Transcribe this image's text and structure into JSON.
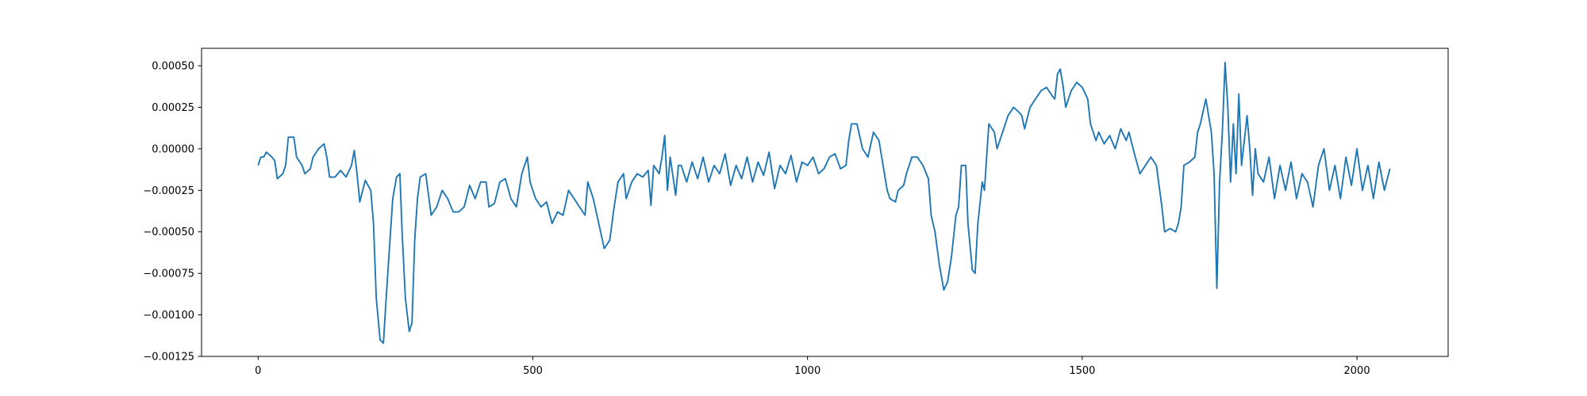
{
  "chart_data": {
    "type": "line",
    "color": "#1f77b4",
    "xlim": [
      -103,
      2166
    ],
    "ylim": [
      -0.00125,
      0.000605
    ],
    "xticks": [
      0,
      500,
      1000,
      1500,
      2000
    ],
    "yticks": [
      {
        "value": -0.00125,
        "label": "−0.00125"
      },
      {
        "value": -0.001,
        "label": "−0.00100"
      },
      {
        "value": -0.00075,
        "label": "−0.00075"
      },
      {
        "value": -0.0005,
        "label": "−0.00050"
      },
      {
        "value": -0.00025,
        "label": "−0.00025"
      },
      {
        "value": 0,
        "label": "0.00000"
      },
      {
        "value": 0.00025,
        "label": "0.00025"
      },
      {
        "value": 0.0005,
        "label": "0.00050"
      }
    ],
    "x": [
      0,
      5,
      10,
      15,
      25,
      30,
      35,
      45,
      50,
      55,
      65,
      70,
      80,
      85,
      95,
      100,
      110,
      120,
      125,
      130,
      140,
      150,
      160,
      170,
      175,
      180,
      185,
      195,
      205,
      210,
      215,
      222,
      228,
      233,
      240,
      245,
      252,
      258,
      262,
      268,
      275,
      280,
      285,
      290,
      295,
      305,
      315,
      325,
      335,
      345,
      355,
      365,
      375,
      385,
      395,
      405,
      415,
      420,
      430,
      440,
      450,
      460,
      470,
      475,
      480,
      490,
      495,
      505,
      515,
      525,
      535,
      545,
      555,
      565,
      575,
      585,
      595,
      600,
      610,
      620,
      630,
      640,
      648,
      655,
      665,
      670,
      680,
      690,
      700,
      710,
      715,
      720,
      730,
      735,
      740,
      745,
      750,
      760,
      765,
      770,
      780,
      790,
      800,
      810,
      820,
      830,
      840,
      850,
      860,
      870,
      880,
      890,
      900,
      910,
      920,
      930,
      940,
      950,
      960,
      970,
      980,
      990,
      1000,
      1010,
      1020,
      1030,
      1040,
      1050,
      1060,
      1070,
      1075,
      1080,
      1090,
      1100,
      1110,
      1120,
      1130,
      1140,
      1145,
      1150,
      1160,
      1165,
      1175,
      1180,
      1190,
      1200,
      1210,
      1220,
      1225,
      1232,
      1240,
      1248,
      1255,
      1262,
      1270,
      1275,
      1280,
      1288,
      1292,
      1300,
      1305,
      1310,
      1318,
      1322,
      1330,
      1340,
      1345,
      1355,
      1365,
      1375,
      1385,
      1390,
      1395,
      1405,
      1415,
      1425,
      1435,
      1445,
      1450,
      1455,
      1460,
      1465,
      1470,
      1480,
      1490,
      1500,
      1510,
      1515,
      1525,
      1530,
      1540,
      1550,
      1560,
      1570,
      1580,
      1585,
      1595,
      1605,
      1615,
      1625,
      1635,
      1645,
      1650,
      1660,
      1670,
      1675,
      1680,
      1685,
      1695,
      1705,
      1710,
      1715,
      1725,
      1735,
      1740,
      1745,
      1750,
      1755,
      1760,
      1765,
      1770,
      1775,
      1780,
      1785,
      1790,
      1795,
      1800,
      1805,
      1810,
      1815,
      1820,
      1830,
      1840,
      1850,
      1860,
      1870,
      1880,
      1890,
      1900,
      1910,
      1920,
      1930,
      1940,
      1950,
      1960,
      1970,
      1980,
      1990,
      2000,
      2010,
      2020,
      2030,
      2040,
      2050,
      2060
    ],
    "values": [
      -0.0001,
      -5e-05,
      -5e-05,
      -2e-05,
      -5e-05,
      -7e-05,
      -0.00018,
      -0.00015,
      -0.0001,
      7e-05,
      7e-05,
      -5e-05,
      -0.0001,
      -0.00015,
      -0.00012,
      -5e-05,
      0,
      3e-05,
      -5e-05,
      -0.00017,
      -0.00017,
      -0.00013,
      -0.00017,
      -0.0001,
      -1e-05,
      -0.00015,
      -0.00032,
      -0.00019,
      -0.00025,
      -0.00045,
      -0.0009,
      -0.00115,
      -0.00117,
      -0.0009,
      -0.00055,
      -0.0003,
      -0.00017,
      -0.00015,
      -0.0005,
      -0.0009,
      -0.0011,
      -0.00105,
      -0.00055,
      -0.0003,
      -0.00017,
      -0.00015,
      -0.0004,
      -0.00035,
      -0.00025,
      -0.0003,
      -0.00038,
      -0.00038,
      -0.00035,
      -0.00022,
      -0.0003,
      -0.0002,
      -0.0002,
      -0.00035,
      -0.00033,
      -0.0002,
      -0.00018,
      -0.0003,
      -0.00035,
      -0.00025,
      -0.00015,
      -5e-05,
      -0.0002,
      -0.0003,
      -0.00035,
      -0.00032,
      -0.00045,
      -0.00038,
      -0.0004,
      -0.00025,
      -0.0003,
      -0.00035,
      -0.0004,
      -0.0002,
      -0.0003,
      -0.00045,
      -0.0006,
      -0.00055,
      -0.00035,
      -0.0002,
      -0.00015,
      -0.0003,
      -0.0002,
      -0.00015,
      -0.00017,
      -0.00013,
      -0.00034,
      -0.0001,
      -0.00015,
      -5e-05,
      8e-05,
      -0.00025,
      -5e-05,
      -0.00028,
      -0.0001,
      -0.0001,
      -0.0002,
      -8e-05,
      -0.00018,
      -5e-05,
      -0.0002,
      -0.0001,
      -0.00015,
      -3e-05,
      -0.00022,
      -0.0001,
      -0.00018,
      -5e-05,
      -0.0002,
      -8e-05,
      -0.00016,
      -2e-05,
      -0.00024,
      -0.0001,
      -0.00015,
      -4e-05,
      -0.0002,
      -8e-05,
      -0.0001,
      -5e-05,
      -0.00015,
      -0.00012,
      -5e-05,
      -3e-05,
      -0.00012,
      -0.0001,
      5e-05,
      0.00015,
      0.00015,
      0,
      -5e-05,
      0.0001,
      5e-05,
      -0.00015,
      -0.00025,
      -0.0003,
      -0.00032,
      -0.00025,
      -0.00022,
      -0.00015,
      -5e-05,
      -5e-05,
      -0.0001,
      -0.00018,
      -0.0004,
      -0.0005,
      -0.0007,
      -0.00085,
      -0.0008,
      -0.00065,
      -0.0004,
      -0.00035,
      -0.0001,
      -0.0001,
      -0.00045,
      -0.00073,
      -0.00075,
      -0.00045,
      -0.0002,
      -0.00025,
      0.00015,
      0.0001,
      0,
      0.0001,
      0.0002,
      0.00025,
      0.00022,
      0.0002,
      0.00012,
      0.00025,
      0.0003,
      0.00035,
      0.00037,
      0.00032,
      0.0003,
      0.00045,
      0.00048,
      0.00038,
      0.00025,
      0.00035,
      0.0004,
      0.00037,
      0.0003,
      0.00015,
      5e-05,
      0.0001,
      3e-05,
      8e-05,
      0,
      0.00012,
      5e-05,
      0.0001,
      -3e-05,
      -0.00015,
      -0.0001,
      -5e-05,
      -0.0001,
      -0.00035,
      -0.0005,
      -0.00048,
      -0.0005,
      -0.00045,
      -0.00035,
      -0.0001,
      -8e-05,
      -5e-05,
      0.0001,
      0.00015,
      0.0003,
      0.0001,
      -0.00015,
      -0.00084,
      -0.0002,
      0.0001,
      0.00052,
      0.00025,
      -0.0002,
      0.00015,
      -0.00015,
      0.00033,
      -0.0001,
      5e-05,
      0.0002,
      0,
      -0.00028,
      0,
      -0.00015,
      -0.0002,
      -5e-05,
      -0.0003,
      -0.0001,
      -0.00025,
      -8e-05,
      -0.0003,
      -0.00015,
      -0.0002,
      -0.00035,
      -0.0001,
      0,
      -0.00025,
      -0.0001,
      -0.0003,
      -5e-05,
      -0.00022,
      0,
      -0.00025,
      -0.0001,
      -0.0003,
      -8e-05,
      -0.00025,
      -0.00012
    ]
  }
}
